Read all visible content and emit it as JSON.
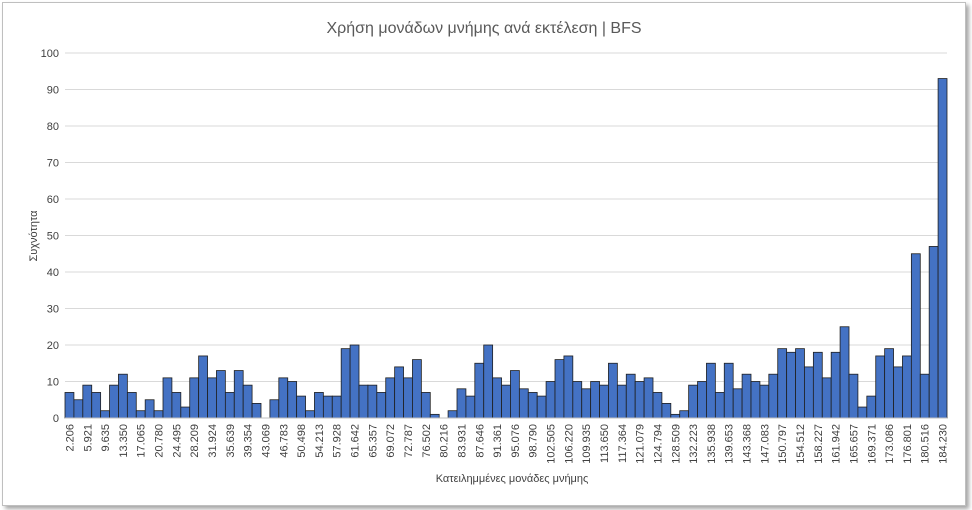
{
  "chart_data": {
    "type": "bar",
    "title": "Χρήση μονάδων μνήμης ανά εκτέλεση | BFS",
    "xlabel": "Κατειλημμένες μονάδες μνήμης",
    "ylabel": "Συχνότητα",
    "ylim": [
      0,
      100
    ],
    "yticks": [
      0,
      10,
      20,
      30,
      40,
      50,
      60,
      70,
      80,
      90,
      100
    ],
    "grid": true,
    "legend": "none",
    "colors": {
      "bar": "#4472C4",
      "bar_edge": "#1F1F1F",
      "grid": "#D9D9D9"
    },
    "categories": [
      "2.206",
      "",
      "5.921",
      "",
      "9.635",
      "",
      "13.350",
      "",
      "17.065",
      "",
      "20.780",
      "",
      "24.495",
      "",
      "28.209",
      "",
      "31.924",
      "",
      "35.639",
      "",
      "39.354",
      "",
      "43.069",
      "",
      "46.783",
      "",
      "50.498",
      "",
      "54.213",
      "",
      "57.928",
      "",
      "61.642",
      "",
      "65.357",
      "",
      "69.072",
      "",
      "72.787",
      "",
      "76.502",
      "",
      "80.216",
      "",
      "83.931",
      "",
      "87.646",
      "",
      "91.361",
      "",
      "95.076",
      "",
      "98.790",
      "",
      "102.505",
      "",
      "106.220",
      "",
      "109.935",
      "",
      "113.650",
      "",
      "117.364",
      "",
      "121.079",
      "",
      "124.794",
      "",
      "128.509",
      "",
      "132.223",
      "",
      "135.938",
      "",
      "139.653",
      "",
      "143.368",
      "",
      "147.083",
      "",
      "150.797",
      "",
      "154.512",
      "",
      "158.227",
      "",
      "161.942",
      "",
      "165.657",
      "",
      "169.371",
      "",
      "173.086",
      "",
      "176.801",
      "",
      "180.516",
      "",
      "184.230"
    ],
    "values": [
      7,
      5,
      9,
      7,
      2,
      9,
      12,
      7,
      2,
      5,
      2,
      11,
      7,
      3,
      11,
      17,
      11,
      13,
      7,
      13,
      9,
      4,
      0,
      5,
      11,
      10,
      6,
      2,
      7,
      6,
      6,
      19,
      20,
      9,
      9,
      7,
      11,
      14,
      11,
      16,
      7,
      1,
      0,
      2,
      8,
      6,
      15,
      20,
      11,
      9,
      13,
      8,
      7,
      6,
      10,
      16,
      17,
      10,
      8,
      10,
      9,
      15,
      9,
      12,
      10,
      11,
      7,
      4,
      1,
      2,
      9,
      10,
      15,
      7,
      15,
      8,
      12,
      10,
      9,
      12,
      19,
      18,
      19,
      14,
      18,
      11,
      18,
      25,
      12,
      3,
      6,
      17,
      19,
      14,
      17,
      45,
      12,
      47,
      93
    ]
  }
}
